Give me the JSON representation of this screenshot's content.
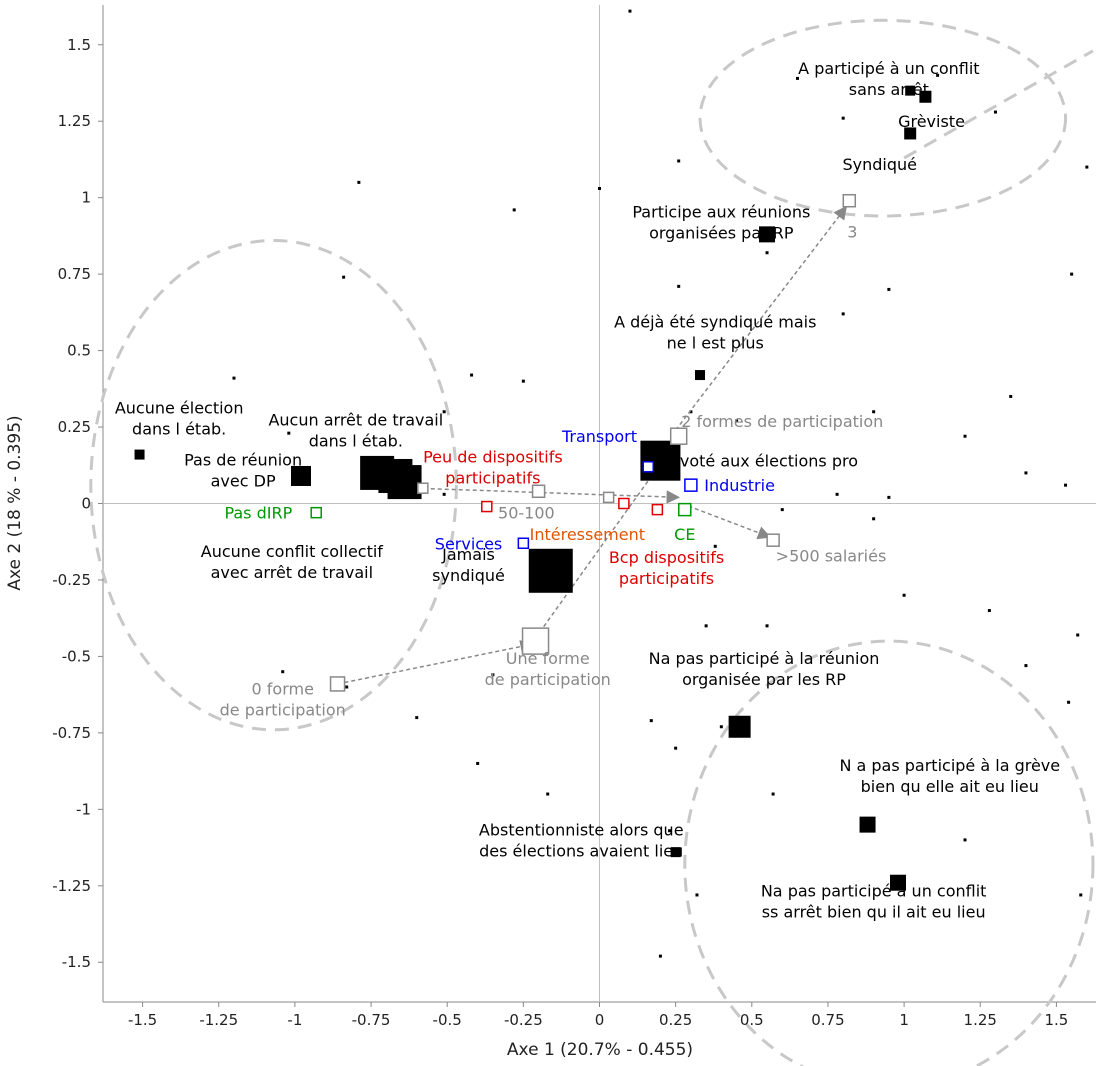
{
  "chart_data": {
    "type": "scatter",
    "xlabel": "Axe 1 (20.7% - 0.455)",
    "ylabel": "Axe 2 (18 % - 0.395)",
    "xlim": [
      -1.63,
      1.63
    ],
    "ylim": [
      -1.63,
      1.63
    ],
    "xticks": [
      -1.5,
      -1.25,
      -1,
      -0.75,
      -0.5,
      -0.25,
      0,
      0.25,
      0.5,
      0.75,
      1,
      1.25,
      1.5
    ],
    "yticks": [
      1.5,
      1.25,
      1,
      0.75,
      0.5,
      0.25,
      0,
      -0.25,
      -0.5,
      -0.75,
      -1,
      -1.25,
      -1.5
    ],
    "grid": false,
    "colors": {
      "black": "#000000",
      "grey": "#888888",
      "red": "#dd0000",
      "blue": "#0000ee",
      "green": "#009900",
      "orange": "#e05500",
      "circle": "#c8c8c8"
    },
    "points": [
      {
        "label": "A participé à un conflit\nsans arrêt",
        "x": 1.02,
        "y": 1.35,
        "size": 10,
        "color": "black",
        "filled": true,
        "lx": 0.95,
        "ly": 1.39
      },
      {
        "label": "Grèviste",
        "x": 1.07,
        "y": 1.33,
        "size": 12,
        "color": "black",
        "filled": true,
        "lx": 1.09,
        "ly": 1.25
      },
      {
        "label": "Syndiqué",
        "x": 1.02,
        "y": 1.21,
        "size": 12,
        "color": "black",
        "filled": true,
        "lx": 0.92,
        "ly": 1.11
      },
      {
        "label": "Participe aux réunions\norganisées par RP",
        "x": 0.55,
        "y": 0.88,
        "size": 16,
        "color": "black",
        "filled": true,
        "lx": 0.4,
        "ly": 0.92
      },
      {
        "label": "A déjà été syndiqué mais\nne l est plus",
        "x": 0.33,
        "y": 0.42,
        "size": 10,
        "color": "black",
        "filled": true,
        "lx": 0.38,
        "ly": 0.56
      },
      {
        "label": "A voté aux élections pro",
        "x": 0.2,
        "y": 0.14,
        "size": 40,
        "color": "black",
        "filled": true,
        "lx": 0.53,
        "ly": 0.14
      },
      {
        "label": "Aucune élection\ndans l étab.",
        "x": -1.51,
        "y": 0.16,
        "size": 10,
        "color": "black",
        "filled": true,
        "lx": -1.38,
        "ly": 0.28
      },
      {
        "label": "Pas de réunion\navec DP",
        "x": -0.98,
        "y": 0.09,
        "size": 20,
        "color": "black",
        "filled": true,
        "lx": -1.17,
        "ly": 0.11
      },
      {
        "label": "Aucun arrêt de travail\ndans l étab.",
        "x": -0.67,
        "y": 0.09,
        "size": 34,
        "color": "black",
        "filled": true,
        "lx": -0.8,
        "ly": 0.24
      },
      {
        "label": "",
        "x": -0.64,
        "y": 0.07,
        "size": 34,
        "color": "black",
        "filled": true,
        "lx": 0,
        "ly": 0
      },
      {
        "label": "Aucune conflit collectif\navec arrêt de travail",
        "x": -0.73,
        "y": 0.1,
        "size": 34,
        "color": "black",
        "filled": true,
        "lx": -1.01,
        "ly": -0.19
      },
      {
        "label": "Jamais\nsyndiqué",
        "x": -0.16,
        "y": -0.22,
        "size": 44,
        "color": "black",
        "filled": true,
        "lx": -0.43,
        "ly": -0.2
      },
      {
        "label": "Na pas participé à la réunion\norganisée par les RP",
        "x": 0.46,
        "y": -0.73,
        "size": 22,
        "color": "black",
        "filled": true,
        "lx": 0.54,
        "ly": -0.54
      },
      {
        "label": "N a pas participé à la grève\nbien qu elle ait eu lieu",
        "x": 0.88,
        "y": -1.05,
        "size": 16,
        "color": "black",
        "filled": true,
        "lx": 1.15,
        "ly": -0.89
      },
      {
        "label": "Abstentionniste alors que\ndes élections avaient lieu",
        "x": 0.25,
        "y": -1.14,
        "size": 10,
        "color": "black",
        "filled": true,
        "lx": -0.06,
        "ly": -1.1
      },
      {
        "label": "Na pas participé à un conflit\nss arrêt bien qu il ait eu lieu",
        "x": 0.98,
        "y": -1.24,
        "size": 16,
        "color": "black",
        "filled": true,
        "lx": 0.9,
        "ly": -1.3
      },
      {
        "label": "Peu de dispositifs\nparticipatifs",
        "x": -0.37,
        "y": -0.01,
        "size": 10,
        "color": "red",
        "filled": false,
        "lx": -0.35,
        "ly": 0.12
      },
      {
        "label": "Bcp dispositifs\nparticipatifs",
        "x": 0.19,
        "y": -0.02,
        "size": 10,
        "color": "red",
        "filled": false,
        "lx": 0.22,
        "ly": -0.21
      },
      {
        "label": "",
        "x": 0.08,
        "y": 0.0,
        "size": 10,
        "color": "red",
        "filled": false,
        "lx": 0,
        "ly": 0
      },
      {
        "label": "Intéressement",
        "x": -0.21,
        "y": -0.1,
        "size": 0,
        "color": "orange",
        "filled": false,
        "lx": -0.04,
        "ly": -0.1
      },
      {
        "label": "Transport",
        "x": 0.16,
        "y": 0.12,
        "size": 10,
        "color": "blue",
        "filled": false,
        "lx": 0.0,
        "ly": 0.22
      },
      {
        "label": "Industrie",
        "x": 0.3,
        "y": 0.06,
        "size": 12,
        "color": "blue",
        "filled": false,
        "lx": 0.46,
        "ly": 0.06
      },
      {
        "label": "Services",
        "x": -0.25,
        "y": -0.13,
        "size": 10,
        "color": "blue",
        "filled": false,
        "lx": -0.43,
        "ly": -0.13
      },
      {
        "label": "CE",
        "x": 0.28,
        "y": -0.02,
        "size": 12,
        "color": "green",
        "filled": false,
        "lx": 0.28,
        "ly": -0.1
      },
      {
        "label": "Pas dIRP",
        "x": -0.93,
        "y": -0.03,
        "size": 10,
        "color": "green",
        "filled": false,
        "lx": -1.12,
        "ly": -0.03
      },
      {
        "label": "3",
        "x": 0.82,
        "y": 0.99,
        "size": 12,
        "color": "grey",
        "filled": false,
        "lx": 0.83,
        "ly": 0.89
      },
      {
        "label": "2 formes de participation",
        "x": 0.26,
        "y": 0.22,
        "size": 16,
        "color": "grey",
        "filled": false,
        "lx": 0.6,
        "ly": 0.27
      },
      {
        "label": "50-100",
        "x": -0.2,
        "y": 0.04,
        "size": 12,
        "color": "grey",
        "filled": false,
        "lx": -0.24,
        "ly": -0.03
      },
      {
        "label": "",
        "x": 0.03,
        "y": 0.02,
        "size": 10,
        "color": "grey",
        "filled": false,
        "lx": 0,
        "ly": 0
      },
      {
        "label": "",
        "x": -0.58,
        "y": 0.05,
        "size": 10,
        "color": "grey",
        "filled": false,
        "lx": 0,
        "ly": 0
      },
      {
        "label": ">500 salariés",
        "x": 0.57,
        "y": -0.12,
        "size": 12,
        "color": "grey",
        "filled": false,
        "lx": 0.76,
        "ly": -0.17
      },
      {
        "label": "Une forme\nde participation",
        "x": -0.21,
        "y": -0.45,
        "size": 26,
        "color": "grey",
        "filled": false,
        "lx": -0.17,
        "ly": -0.54
      },
      {
        "label": "0 forme\nde participation",
        "x": -0.86,
        "y": -0.59,
        "size": 14,
        "color": "grey",
        "filled": false,
        "lx": -1.04,
        "ly": -0.64
      }
    ],
    "arrows": [
      {
        "from": [
          -0.86,
          -0.59
        ],
        "to": [
          -0.22,
          -0.46
        ]
      },
      {
        "from": [
          -0.21,
          -0.44
        ],
        "to": [
          0.25,
          0.2
        ]
      },
      {
        "from": [
          0.25,
          0.24
        ],
        "to": [
          0.81,
          0.97
        ]
      },
      {
        "from": [
          -0.6,
          0.05
        ],
        "to": [
          0.26,
          0.02
        ]
      },
      {
        "from": [
          0.27,
          0.0
        ],
        "to": [
          0.56,
          -0.11
        ]
      }
    ],
    "minor_points": [
      [
        -1.2,
        0.41
      ],
      [
        -1.02,
        0.23
      ],
      [
        -0.79,
        1.05
      ],
      [
        -0.84,
        0.74
      ],
      [
        -0.42,
        0.42
      ],
      [
        -0.51,
        0.3
      ],
      [
        -0.51,
        0.03
      ],
      [
        0.0,
        1.03
      ],
      [
        0.26,
        1.12
      ],
      [
        0.1,
        1.61
      ],
      [
        0.26,
        0.71
      ],
      [
        0.55,
        0.82
      ],
      [
        0.8,
        0.62
      ],
      [
        0.95,
        0.7
      ],
      [
        0.9,
        0.3
      ],
      [
        0.45,
        0.27
      ],
      [
        0.3,
        0.3
      ],
      [
        0.38,
        -0.14
      ],
      [
        0.6,
        -0.02
      ],
      [
        0.78,
        0.03
      ],
      [
        0.95,
        0.02
      ],
      [
        1.2,
        0.22
      ],
      [
        1.4,
        0.1
      ],
      [
        1.35,
        0.35
      ],
      [
        1.53,
        0.06
      ],
      [
        1.55,
        0.75
      ],
      [
        1.6,
        1.1
      ],
      [
        1.3,
        1.28
      ],
      [
        1.11,
        1.4
      ],
      [
        0.65,
        1.39
      ],
      [
        0.8,
        1.26
      ],
      [
        0.9,
        -0.05
      ],
      [
        1.4,
        -0.53
      ],
      [
        1.57,
        -0.43
      ],
      [
        1.28,
        -0.35
      ],
      [
        1.0,
        -0.3
      ],
      [
        0.35,
        -0.4
      ],
      [
        0.55,
        -0.4
      ],
      [
        0.4,
        -0.73
      ],
      [
        0.17,
        -0.71
      ],
      [
        0.25,
        -0.8
      ],
      [
        0.57,
        -0.95
      ],
      [
        0.23,
        -1.07
      ],
      [
        0.32,
        -1.28
      ],
      [
        0.2,
        -1.48
      ],
      [
        1.2,
        -1.1
      ],
      [
        1.54,
        -0.65
      ],
      [
        1.58,
        -1.28
      ],
      [
        -0.35,
        -0.56
      ],
      [
        -0.6,
        -0.7
      ],
      [
        -0.4,
        -0.85
      ],
      [
        -1.04,
        -0.55
      ],
      [
        -0.83,
        -0.6
      ],
      [
        -0.28,
        0.96
      ],
      [
        -0.25,
        0.4
      ],
      [
        -0.17,
        -0.95
      ]
    ],
    "circles": [
      {
        "cx": -1.07,
        "cy": 0.06,
        "rx": 0.6,
        "ry": 0.8
      },
      {
        "cx": 0.93,
        "cy": 1.26,
        "rx": 0.6,
        "ry": 0.32
      },
      {
        "cx": 0.95,
        "cy": -1.18,
        "rx": 0.67,
        "ry": 0.73
      }
    ],
    "dashed_lines": [
      {
        "from": [
          1.0,
          1.13
        ],
        "to": [
          1.62,
          1.48
        ]
      }
    ]
  }
}
